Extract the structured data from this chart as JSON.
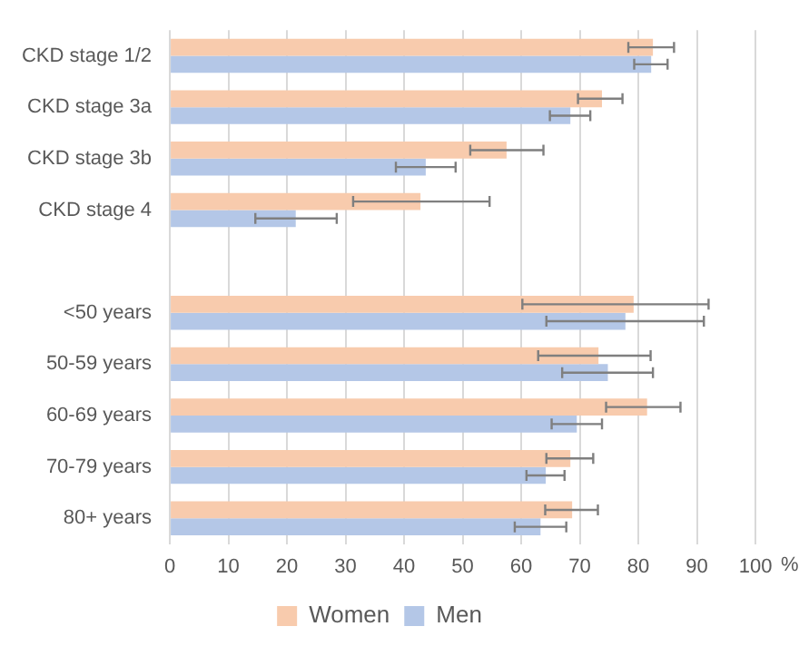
{
  "chart_data": {
    "type": "bar",
    "orientation": "horizontal",
    "xlabel": "%",
    "categories": [
      "CKD stage 1/2",
      "CKD stage 3a",
      "CKD stage 3b",
      "CKD stage 4",
      null,
      "<50 years",
      "50-59 years",
      "60-69 years",
      "70-79 years",
      "80+ years"
    ],
    "series": [
      {
        "name": "Women",
        "color": "#f8cbad",
        "values": [
          82.5,
          73.8,
          57.5,
          42.8,
          null,
          79.2,
          73.2,
          81.5,
          68.4,
          68.7
        ],
        "errors": [
          [
            78.3,
            86.1
          ],
          [
            69.7,
            77.3
          ],
          [
            51.3,
            63.8
          ],
          [
            31.3,
            54.6
          ],
          null,
          [
            60.2,
            92.0
          ],
          [
            62.9,
            82.1
          ],
          [
            74.5,
            87.2
          ],
          [
            64.3,
            72.3
          ],
          [
            64.1,
            73.1
          ]
        ]
      },
      {
        "name": "Men",
        "color": "#b4c7e7",
        "values": [
          82.2,
          68.4,
          43.7,
          21.5,
          null,
          77.8,
          74.8,
          69.5,
          64.2,
          63.3
        ],
        "errors": [
          [
            79.3,
            85.0
          ],
          [
            64.9,
            71.8
          ],
          [
            38.6,
            48.8
          ],
          [
            14.6,
            28.5
          ],
          null,
          [
            64.3,
            91.2
          ],
          [
            67.0,
            82.5
          ],
          [
            65.2,
            73.8
          ],
          [
            60.9,
            67.4
          ],
          [
            58.9,
            67.7
          ]
        ]
      }
    ],
    "xlim": [
      0,
      100
    ],
    "xticks": [
      0,
      10,
      20,
      30,
      40,
      50,
      60,
      70,
      80,
      90,
      100
    ],
    "grid": "x",
    "legend": "bottom"
  }
}
